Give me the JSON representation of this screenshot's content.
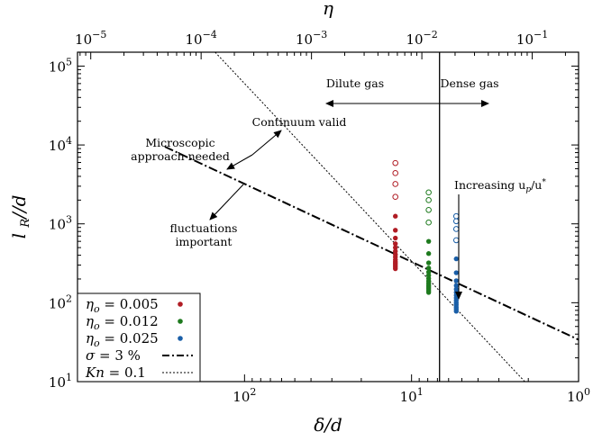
{
  "chart_data": {
    "type": "scatter",
    "xlabel": "δ/d",
    "ylabel": "l_R//d",
    "top_xlabel": "η",
    "x_scale": "log-reversed",
    "y_scale": "log",
    "xlim": [
      1000,
      1
    ],
    "ylim": [
      10,
      150000
    ],
    "top_axis": {
      "ticks": [
        {
          "base": "10",
          "exp": "−5",
          "eta": 1e-05
        },
        {
          "base": "10",
          "exp": "−4",
          "eta": 0.0001
        },
        {
          "base": "10",
          "exp": "−3",
          "eta": 0.001
        },
        {
          "base": "10",
          "exp": "−2",
          "eta": 0.01
        },
        {
          "base": "10",
          "exp": "−1",
          "eta": 0.1
        }
      ]
    },
    "bottom_ticks": [
      {
        "base": "10",
        "exp": "2",
        "value": 100
      },
      {
        "base": "10",
        "exp": "1",
        "value": 10
      },
      {
        "base": "10",
        "exp": "0",
        "value": 1
      }
    ],
    "left_ticks": [
      {
        "base": "10",
        "exp": "1",
        "value": 10
      },
      {
        "base": "10",
        "exp": "2",
        "value": 100
      },
      {
        "base": "10",
        "exp": "3",
        "value": 1000
      },
      {
        "base": "10",
        "exp": "4",
        "value": 10000
      },
      {
        "base": "10",
        "exp": "5",
        "value": 100000
      }
    ],
    "series": [
      {
        "name": "η_o = 0.005",
        "color": "#b01c24",
        "x": 12.5,
        "filled": [
          270,
          285,
          300,
          315,
          330,
          350,
          380,
          410,
          450,
          500,
          560,
          660,
          830,
          1250
        ],
        "open": [
          2200,
          3200,
          4400,
          5900
        ]
      },
      {
        "name": "η_o = 0.012",
        "color": "#1e7a1e",
        "x": 7.9,
        "filled": [
          135,
          142,
          150,
          158,
          166,
          176,
          188,
          203,
          222,
          245,
          275,
          320,
          420,
          600
        ],
        "open": [
          1040,
          1500,
          2000,
          2500
        ]
      },
      {
        "name": "η_o = 0.025",
        "color": "#1a5fa8",
        "x": 5.4,
        "filled": [
          78,
          83,
          88,
          94,
          100,
          107,
          115,
          124,
          135,
          148,
          165,
          190,
          240,
          360
        ],
        "open": [
          620,
          860,
          1080,
          1250
        ]
      }
    ],
    "lines": [
      {
        "name": "σ = 3 %",
        "style": "dashdot",
        "x": [
          300,
          1
        ],
        "y": [
          9500,
          34
        ]
      },
      {
        "name": "Kn = 0.1",
        "style": "dotted",
        "x": [
          150,
          2.1
        ],
        "y": [
          150000,
          10
        ]
      }
    ],
    "vertical_line": {
      "x": 6.8
    },
    "annotations": {
      "dilute": "Dilute gas",
      "dense": "Dense gas",
      "continuum": "Continuum valid",
      "micro_line1": "Microscopic",
      "micro_line2": "approach needed",
      "fluct_line1": "fluctuations",
      "fluct_line2": "important",
      "increasing": "Increasing u",
      "increasing_sub1": "p",
      "increasing_sep": "/u",
      "increasing_sup": "*"
    },
    "legend": {
      "placement": "bottom-left",
      "entries": [
        {
          "main": "η",
          "sub": "o",
          "rest": " = 0.005"
        },
        {
          "main": "η",
          "sub": "o",
          "rest": " = 0.012"
        },
        {
          "main": "η",
          "sub": "o",
          "rest": " = 0.025"
        },
        {
          "main": "σ",
          "sub": "",
          "rest": " = 3 %"
        },
        {
          "main": "Kn",
          "sub": "",
          "rest": " = 0.1"
        }
      ]
    }
  }
}
